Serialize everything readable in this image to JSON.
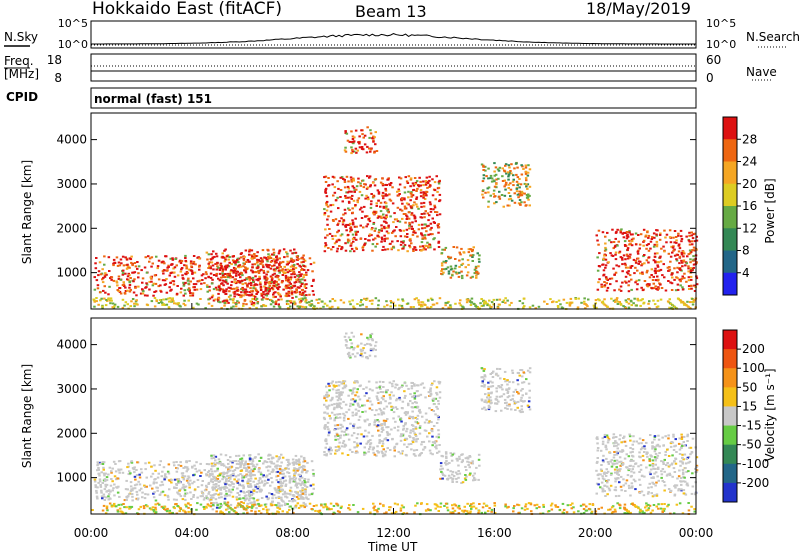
{
  "header": {
    "title": "Hokkaido East (fitACF)",
    "beam": "Beam 13",
    "date": "18/May/2019"
  },
  "noise_panel": {
    "left_label": "N.Sky",
    "right_label": "N.Search",
    "ticks": [
      "10^5",
      "10^0"
    ]
  },
  "freq_panel": {
    "label_line1": "Freq.",
    "label_line2": "[MHz]",
    "left_ticks": [
      "18",
      "8"
    ],
    "right_ticks": [
      "60",
      "0"
    ],
    "right_label": "Nave"
  },
  "cpid_panel": {
    "label": "CPID",
    "value": "normal (fast) 151"
  },
  "axes": {
    "xlabel": "Time UT",
    "ylabel": "Slant Range [km]",
    "xticks": [
      "00:00",
      "04:00",
      "08:00",
      "12:00",
      "16:00",
      "20:00",
      "00:00"
    ],
    "yticks": [
      "1000",
      "2000",
      "3000",
      "4000"
    ]
  },
  "chart_data": [
    {
      "type": "heatmap",
      "title": "",
      "xlabel": "",
      "ylabel": "Slant Range [km]",
      "x_range_hours": [
        0,
        24
      ],
      "y_range_km": [
        180,
        4600
      ],
      "colorbar": {
        "label": "Power [dB]",
        "ticks": [
          "28",
          "24",
          "20",
          "16",
          "12",
          "8",
          "4"
        ],
        "colors": [
          "#2222ee",
          "#226688",
          "#338855",
          "#66aa44",
          "#ddcc22",
          "#f5a623",
          "#ee6611",
          "#dd1111"
        ],
        "range": [
          0,
          32
        ]
      },
      "regions": [
        {
          "t0": 0.1,
          "t1": 8.8,
          "r0": 500,
          "r1": 1400,
          "level": "strong"
        },
        {
          "t0": 4.5,
          "t1": 8.5,
          "r0": 300,
          "r1": 1550,
          "level": "strong"
        },
        {
          "t0": 9.2,
          "t1": 13.8,
          "r0": 1500,
          "r1": 3200,
          "level": "strong"
        },
        {
          "t0": 10.0,
          "t1": 11.3,
          "r0": 3700,
          "r1": 4300,
          "level": "strong"
        },
        {
          "t0": 13.8,
          "t1": 15.4,
          "r0": 900,
          "r1": 1600,
          "level": "medium"
        },
        {
          "t0": 15.4,
          "t1": 17.4,
          "r0": 2500,
          "r1": 3500,
          "level": "medium"
        },
        {
          "t0": 20.0,
          "t1": 24.0,
          "r0": 600,
          "r1": 2000,
          "level": "strong"
        },
        {
          "t0": 0.0,
          "t1": 24.0,
          "r0": 200,
          "r1": 450,
          "level": "weak"
        }
      ]
    },
    {
      "type": "heatmap",
      "title": "",
      "xlabel": "Time UT",
      "ylabel": "Slant Range [km]",
      "x_range_hours": [
        0,
        24
      ],
      "y_range_km": [
        180,
        4600
      ],
      "colorbar": {
        "label": "Velocity [m s⁻¹]",
        "ticks": [
          "200",
          "100",
          "50",
          "15",
          "-15",
          "-50",
          "-100",
          "-200"
        ],
        "colors": [
          "#2233cc",
          "#226688",
          "#338855",
          "#66cc44",
          "#c8c8c8",
          "#f5c018",
          "#f59218",
          "#ee5511",
          "#dd1111"
        ],
        "range": [
          -250,
          250
        ]
      },
      "regions": [
        {
          "t0": 0.1,
          "t1": 8.8,
          "r0": 500,
          "r1": 1400,
          "level": "ground"
        },
        {
          "t0": 4.5,
          "t1": 8.5,
          "r0": 300,
          "r1": 1550,
          "level": "ground"
        },
        {
          "t0": 9.2,
          "t1": 13.8,
          "r0": 1500,
          "r1": 3200,
          "level": "ground"
        },
        {
          "t0": 10.0,
          "t1": 11.3,
          "r0": 3700,
          "r1": 4300,
          "level": "ground"
        },
        {
          "t0": 13.8,
          "t1": 15.4,
          "r0": 900,
          "r1": 1600,
          "level": "ground"
        },
        {
          "t0": 15.4,
          "t1": 17.4,
          "r0": 2500,
          "r1": 3500,
          "level": "ground"
        },
        {
          "t0": 20.0,
          "t1": 24.0,
          "r0": 600,
          "r1": 2000,
          "level": "ground"
        },
        {
          "t0": 0.0,
          "t1": 24.0,
          "r0": 200,
          "r1": 450,
          "level": "ionospheric"
        }
      ]
    }
  ]
}
